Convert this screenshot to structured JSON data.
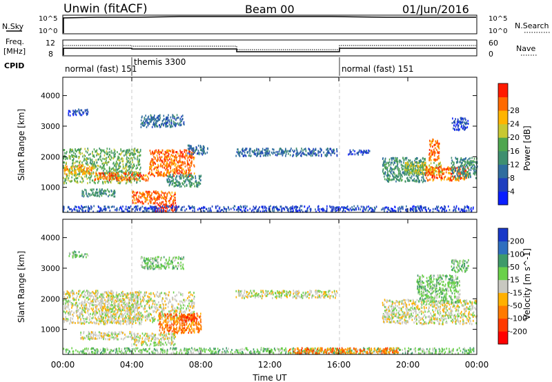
{
  "header": {
    "station": "Unwin (fitACF)",
    "beam": "Beam 00",
    "date": "01/Jun/2016"
  },
  "top_panels": {
    "nsky_label": "N.Sky",
    "nsearch_label": "N.Search",
    "nsky_ticks": [
      "10^5",
      "10^0"
    ],
    "nsearch_ticks": [
      "10^5",
      "10^0"
    ],
    "freq_label": "Freq.",
    "freq_unit": "[MHz]",
    "freq_ticks": [
      "12",
      "8"
    ],
    "nave_label": "Nave",
    "nave_ticks": [
      "60",
      "0"
    ],
    "cpid_label": "CPID",
    "cpid_segments": [
      {
        "label": "normal (fast) 151",
        "start_hour": 0,
        "end_hour": 4
      },
      {
        "label": "themis 3300",
        "start_hour": 4,
        "end_hour": 16
      },
      {
        "label": "normal (fast) 151",
        "start_hour": 16,
        "end_hour": 24
      }
    ]
  },
  "axes": {
    "xlabel": "Time UT",
    "x_ticks": [
      "00:00",
      "04:00",
      "08:00",
      "12:00",
      "16:00",
      "20:00",
      "00:00"
    ],
    "ylabel": "Slant Range [km]",
    "y_ticks": [
      "1000",
      "2000",
      "3000",
      "4000"
    ]
  },
  "power_colorbar": {
    "title": "Power [dB]",
    "ticks": [
      "4",
      "8",
      "12",
      "16",
      "20",
      "24",
      "28"
    ],
    "colors": [
      "#0a1eff",
      "#1f3fbf",
      "#2f6d9e",
      "#3f8f6f",
      "#4fa64f",
      "#c8c832",
      "#ffb400",
      "#ff6a00",
      "#ff1a00"
    ]
  },
  "velocity_colorbar": {
    "title": "Velocity [m s^-1]",
    "ticks": [
      "200",
      "100",
      "50",
      "15",
      "-15",
      "-50",
      "-100",
      "-200"
    ],
    "colors": [
      "#1838c8",
      "#2f6fbf",
      "#3f9a6a",
      "#6ad04a",
      "#c8c8c0",
      "#ffb000",
      "#ff7a00",
      "#ff3a00",
      "#ff0000"
    ]
  },
  "chart_data": {
    "type": "heatmap",
    "title": "Unwin (fitACF)",
    "x_range_hours": [
      0,
      24
    ],
    "y_range_km": [
      180,
      4600
    ],
    "power_bands": [
      {
        "x0": 0.3,
        "x1": 1.5,
        "y0": 3380,
        "y1": 3580,
        "level": 1
      },
      {
        "x0": 0.0,
        "x1": 4.5,
        "y0": 1150,
        "y1": 2300,
        "level": 4
      },
      {
        "x0": 0.0,
        "x1": 1.8,
        "y0": 1450,
        "y1": 1750,
        "level": 6
      },
      {
        "x0": 1.8,
        "x1": 5.0,
        "y0": 1250,
        "y1": 1500,
        "level": 7
      },
      {
        "x0": 5.0,
        "x1": 7.6,
        "y0": 1400,
        "y1": 2250,
        "level": 7
      },
      {
        "x0": 1.0,
        "x1": 3.0,
        "y0": 730,
        "y1": 970,
        "level": 3
      },
      {
        "x0": 4.0,
        "x1": 6.5,
        "y0": 500,
        "y1": 900,
        "level": 7
      },
      {
        "x0": 5.3,
        "x1": 6.6,
        "y0": 230,
        "y1": 500,
        "level": 8
      },
      {
        "x0": 6.0,
        "x1": 8.0,
        "y0": 1050,
        "y1": 1450,
        "level": 3
      },
      {
        "x0": 4.5,
        "x1": 7.0,
        "y0": 3000,
        "y1": 3400,
        "level": 2
      },
      {
        "x0": 7.2,
        "x1": 8.4,
        "y0": 2100,
        "y1": 2400,
        "level": 2
      },
      {
        "x0": 10.0,
        "x1": 15.9,
        "y0": 2050,
        "y1": 2300,
        "level": 2
      },
      {
        "x0": 16.5,
        "x1": 17.8,
        "y0": 2100,
        "y1": 2250,
        "level": 1
      },
      {
        "x0": 0.0,
        "x1": 23.8,
        "y0": 230,
        "y1": 420,
        "level": 1
      },
      {
        "x0": 18.5,
        "x1": 21.0,
        "y0": 1200,
        "y1": 2000,
        "level": 3
      },
      {
        "x0": 19.8,
        "x1": 22.0,
        "y0": 1450,
        "y1": 1850,
        "level": 5
      },
      {
        "x0": 21.0,
        "x1": 23.5,
        "y0": 1250,
        "y1": 1700,
        "level": 7
      },
      {
        "x0": 21.2,
        "x1": 21.8,
        "y0": 1900,
        "y1": 2600,
        "level": 7
      },
      {
        "x0": 22.5,
        "x1": 24.0,
        "y0": 1300,
        "y1": 2000,
        "level": 3
      },
      {
        "x0": 22.5,
        "x1": 23.5,
        "y0": 2900,
        "y1": 3300,
        "level": 1
      }
    ],
    "velocity_bands": [
      {
        "x0": 0.3,
        "x1": 1.5,
        "y0": 3380,
        "y1": 3580,
        "level": 3
      },
      {
        "x0": 0.0,
        "x1": 4.5,
        "y0": 1200,
        "y1": 2300,
        "level": 4
      },
      {
        "x0": 1.8,
        "x1": 7.6,
        "y0": 1250,
        "y1": 2250,
        "level": 4
      },
      {
        "x0": 1.0,
        "x1": 4.0,
        "y0": 700,
        "y1": 950,
        "level": 4
      },
      {
        "x0": 4.0,
        "x1": 6.5,
        "y0": 500,
        "y1": 900,
        "level": 4
      },
      {
        "x0": 5.5,
        "x1": 8.0,
        "y0": 900,
        "y1": 1550,
        "level": 6
      },
      {
        "x0": 6.8,
        "x1": 7.8,
        "y0": 1300,
        "y1": 1550,
        "level": 7
      },
      {
        "x0": 4.5,
        "x1": 7.0,
        "y0": 3000,
        "y1": 3400,
        "level": 3
      },
      {
        "x0": 10.0,
        "x1": 15.9,
        "y0": 2050,
        "y1": 2300,
        "level": 4
      },
      {
        "x0": 0.0,
        "x1": 23.8,
        "y0": 230,
        "y1": 420,
        "level": 3
      },
      {
        "x0": 13.0,
        "x1": 19.5,
        "y0": 230,
        "y1": 420,
        "level": 6
      },
      {
        "x0": 18.5,
        "x1": 24.0,
        "y0": 1200,
        "y1": 2000,
        "level": 4
      },
      {
        "x0": 20.5,
        "x1": 23.0,
        "y0": 1900,
        "y1": 2800,
        "level": 3
      },
      {
        "x0": 22.5,
        "x1": 23.5,
        "y0": 2900,
        "y1": 3300,
        "level": 3
      }
    ]
  }
}
